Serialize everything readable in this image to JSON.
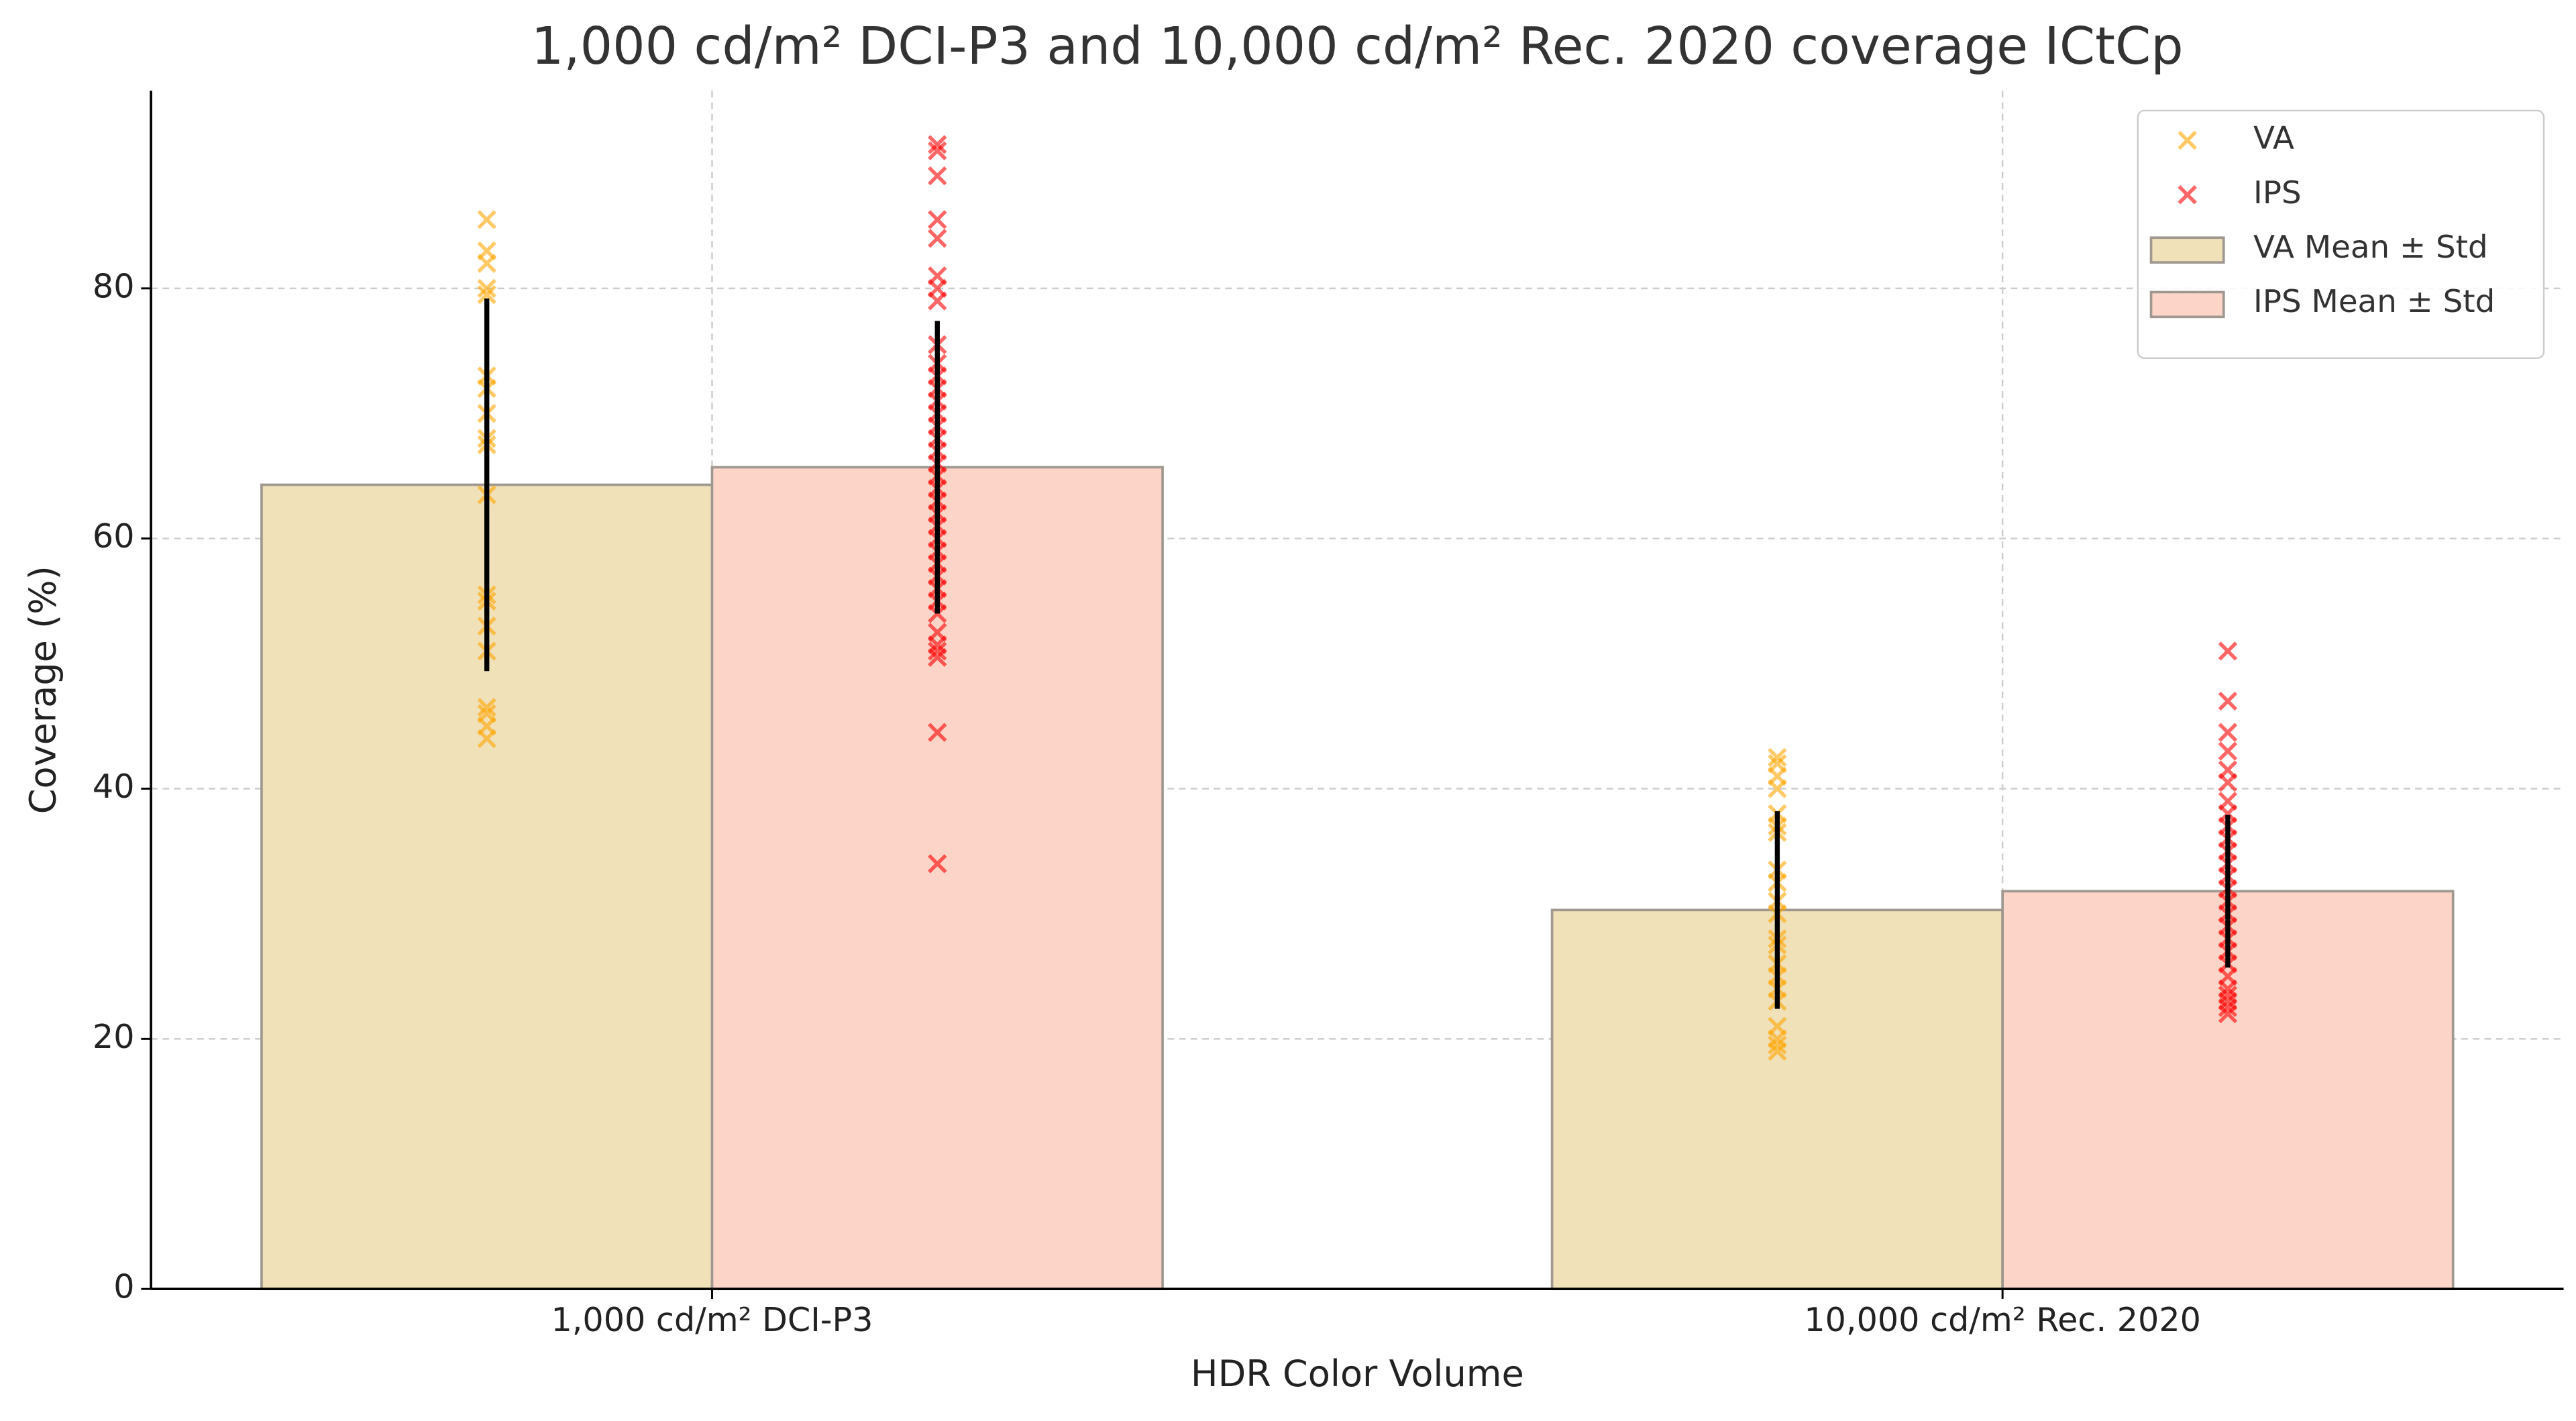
{
  "chart_data": {
    "type": "bar",
    "title": "1,000 cd/m² DCI-P3 and 10,000 cd/m² Rec. 2020 coverage ICtCp",
    "xlabel": "HDR Color Volume",
    "ylabel": "Coverage (%)",
    "categories": [
      "1,000 cd/m² DCI-P3",
      "10,000 cd/m² Rec. 2020"
    ],
    "ylim": [
      0,
      95.8
    ],
    "yticks": [
      0,
      20,
      40,
      60,
      80
    ],
    "grid": true,
    "legend": "upper right",
    "series": [
      {
        "name": "VA Mean ± Std",
        "color": "#f0e1b9",
        "values": [
          64.3,
          30.3
        ],
        "errors": [
          14.9,
          7.9
        ]
      },
      {
        "name": "IPS Mean ± Std",
        "color": "#fdd5c8",
        "values": [
          65.7,
          31.8
        ],
        "errors": [
          11.7,
          6.1
        ]
      }
    ],
    "scatter": [
      {
        "name": "VA",
        "color": "#ffa500",
        "values": [
          [
            85.5,
            83,
            82,
            80,
            79.5,
            73,
            72,
            70,
            68,
            67.5,
            63.5,
            55.5,
            55,
            53,
            51,
            46.5,
            46,
            45,
            44
          ],
          [
            42.5,
            42,
            41,
            40,
            38,
            37,
            36.5,
            33.5,
            32.5,
            31,
            30,
            28,
            27.5,
            26,
            25,
            24,
            23,
            21,
            20,
            19.5,
            19
          ]
        ]
      },
      {
        "name": "IPS",
        "color": "#ff0000",
        "values": [
          [
            91.5,
            91,
            89,
            85.5,
            84,
            81,
            80,
            79,
            75.5,
            74,
            73,
            72,
            71,
            70,
            69,
            68,
            67,
            66,
            65,
            64,
            63,
            62,
            61,
            60,
            59,
            58,
            57,
            56,
            55,
            54,
            52.5,
            51.5,
            51,
            50.5,
            44.5,
            34
          ],
          [
            51,
            47,
            44.5,
            43,
            41.5,
            40.5,
            39,
            38,
            37,
            36,
            35,
            34,
            33,
            32,
            31,
            30,
            29,
            28,
            27,
            26,
            25,
            24,
            23.5,
            23,
            22.5,
            22
          ]
        ]
      }
    ]
  }
}
